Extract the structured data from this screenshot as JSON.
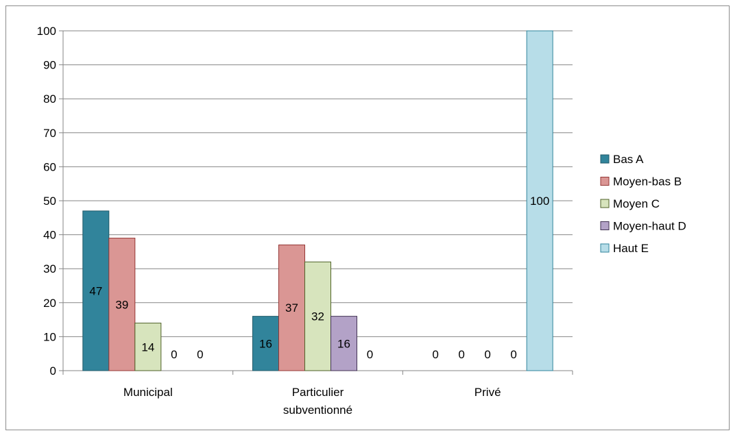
{
  "chart_data": {
    "type": "bar",
    "title": "",
    "xlabel": "",
    "ylabel": "",
    "ylim": [
      0,
      100
    ],
    "yticks": [
      0,
      10,
      20,
      30,
      40,
      50,
      60,
      70,
      80,
      90,
      100
    ],
    "categories": [
      "Municipal",
      "Particulier subventionné",
      "Privé"
    ],
    "category_lines": [
      [
        "Municipal"
      ],
      [
        "Particulier",
        "subventionné"
      ],
      [
        "Privé"
      ]
    ],
    "grid": true,
    "legend_position": "right",
    "series": [
      {
        "name": "Bas A",
        "values": [
          47,
          16,
          0
        ],
        "color": "#31849b",
        "border": "#215968"
      },
      {
        "name": "Moyen-bas B",
        "values": [
          39,
          37,
          0
        ],
        "color": "#da9694",
        "border": "#953735"
      },
      {
        "name": "Moyen C",
        "values": [
          14,
          32,
          0
        ],
        "color": "#d7e4bd",
        "border": "#4f6228"
      },
      {
        "name": "Moyen-haut D",
        "values": [
          0,
          16,
          0
        ],
        "color": "#b3a2c7",
        "border": "#403152"
      },
      {
        "name": "Haut E",
        "values": [
          0,
          0,
          100
        ],
        "color": "#b7dde8",
        "border": "#31859c"
      }
    ]
  }
}
